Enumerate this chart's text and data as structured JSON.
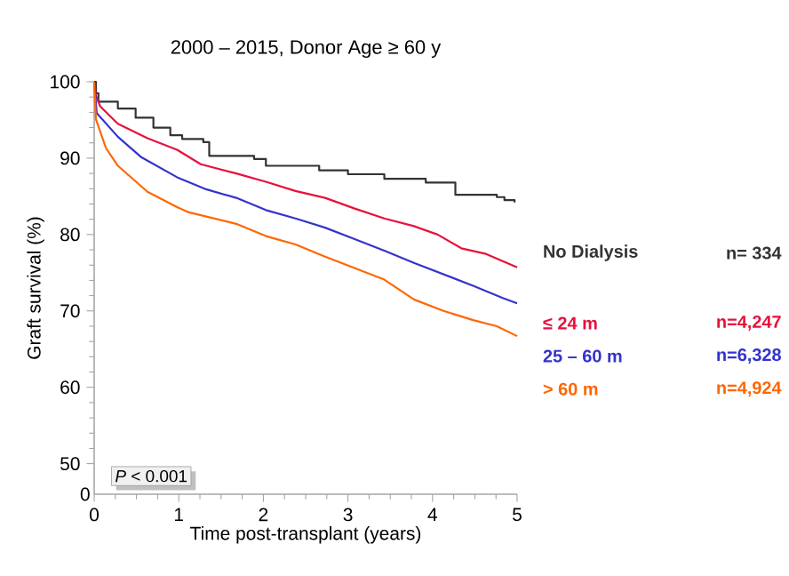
{
  "chart_data": {
    "type": "line",
    "title": "2000 – 2015, Donor Age ≥ 60 y",
    "xlabel": "Time post-transplant (years)",
    "ylabel": "Graft survival (%)",
    "xlim": [
      0,
      5
    ],
    "xticks": [
      0,
      1,
      2,
      3,
      4,
      5
    ],
    "ylim": [
      46,
      100
    ],
    "yticks": [
      50,
      60,
      70,
      80,
      90,
      100
    ],
    "legend": "right",
    "grid": false,
    "marker": "none",
    "line_style": "solid",
    "annotations": [
      "*P* < 0.001",
      "0",
      "n=  334",
      "n=4,247",
      "n=6,328",
      "n=4,924"
    ],
    "series": [
      {
        "name": "No Dialysis",
        "type": "step",
        "color": "#333333",
        "x": [
          0,
          0.02,
          0.05,
          0.28,
          0.49,
          0.7,
          0.9,
          1.04,
          1.29,
          1.36,
          1.89,
          2.03,
          2.66,
          3.0,
          3.43,
          3.92,
          4.27,
          4.76,
          4.85,
          4.97
        ],
        "values": [
          100,
          98.5,
          97.4,
          96.5,
          95.3,
          94,
          93,
          92.5,
          92.1,
          90.3,
          89.9,
          89,
          88.4,
          87.9,
          87.3,
          86.8,
          85.2,
          84.9,
          84.5,
          84.2
        ]
      },
      {
        "name": "≤ 24 m",
        "color": "#e8103c",
        "x": [
          0,
          0.02,
          0.07,
          0.28,
          0.63,
          0.98,
          1.26,
          1.68,
          2.03,
          2.38,
          2.73,
          3.08,
          3.43,
          3.78,
          4.06,
          4.34,
          4.62,
          5.0
        ],
        "values": [
          100,
          98.2,
          96.8,
          94.5,
          92.6,
          91.1,
          89.2,
          88,
          86.9,
          85.7,
          84.8,
          83.4,
          82.1,
          81.1,
          80,
          78.2,
          77.5,
          75.7
        ]
      },
      {
        "name": "25 – 60 m",
        "color": "#3333cc",
        "x": [
          0,
          0.03,
          0.28,
          0.56,
          0.98,
          1.33,
          1.68,
          2.03,
          2.38,
          2.73,
          3.08,
          3.43,
          3.78,
          4.13,
          4.48,
          4.83,
          5.0
        ],
        "values": [
          100,
          95.9,
          92.8,
          90.1,
          87.5,
          85.9,
          84.8,
          83.2,
          82.1,
          80.9,
          79.4,
          77.9,
          76.3,
          74.8,
          73.3,
          71.7,
          71
        ]
      },
      {
        "name": "> 60 m",
        "color": "#ff6600",
        "x": [
          0,
          0.02,
          0.14,
          0.28,
          0.63,
          0.98,
          1.12,
          1.68,
          2.03,
          2.38,
          2.73,
          3.08,
          3.43,
          3.78,
          4.13,
          4.48,
          4.76,
          5.0
        ],
        "values": [
          100,
          95.1,
          91.3,
          89,
          85.6,
          83.6,
          82.9,
          81.4,
          79.8,
          78.7,
          77.1,
          75.6,
          74.1,
          71.5,
          70,
          68.8,
          68,
          66.7
        ]
      }
    ]
  }
}
